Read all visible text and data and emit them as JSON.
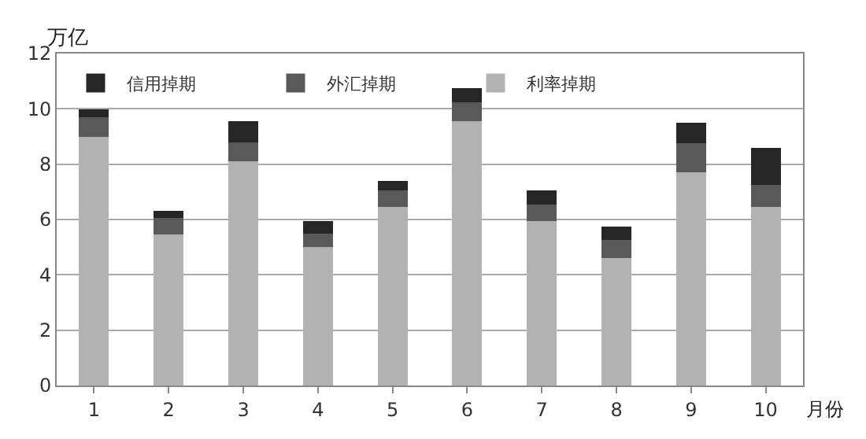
{
  "chart_data": {
    "type": "bar",
    "stacked": true,
    "categories": [
      "1",
      "2",
      "3",
      "4",
      "5",
      "6",
      "7",
      "8",
      "9",
      "10"
    ],
    "series": [
      {
        "name": "利率掉期",
        "color": "#b2b2b2",
        "values": [
          9.0,
          5.45,
          8.1,
          5.0,
          6.45,
          9.55,
          5.95,
          4.6,
          7.7,
          6.45
        ]
      },
      {
        "name": "外汇掉期",
        "color": "#595959",
        "values": [
          0.7,
          0.6,
          0.7,
          0.5,
          0.6,
          0.7,
          0.6,
          0.65,
          1.05,
          0.8
        ]
      },
      {
        "name": "信用掉期",
        "color": "#262626",
        "values": [
          0.27,
          0.27,
          0.75,
          0.45,
          0.35,
          0.5,
          0.5,
          0.5,
          0.75,
          1.35
        ]
      }
    ],
    "ylabel": "万亿",
    "xlabel": "月份",
    "ylim": [
      0,
      12
    ],
    "yticks": [
      0,
      2,
      4,
      6,
      8,
      10,
      12
    ],
    "grid": "y",
    "legend": "top left"
  }
}
